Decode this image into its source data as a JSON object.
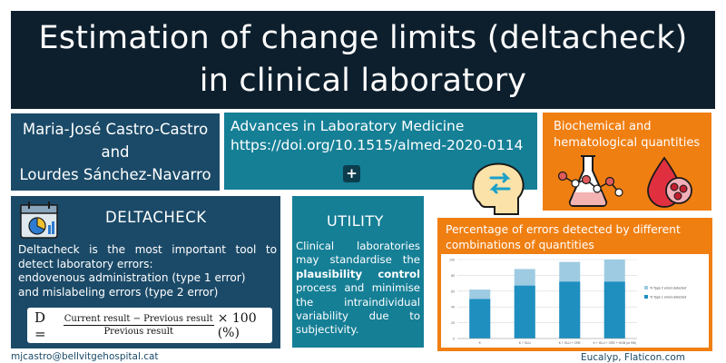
{
  "title": {
    "line1": "Estimation of change limits (deltacheck)",
    "line2": "in clinical laboratory"
  },
  "authors": {
    "line1": "Maria-José Castro-Castro",
    "line2": "and",
    "line3": "Lourdes Sánchez-Navarro"
  },
  "journal": {
    "name": "Advances in Laboratory Medicine",
    "doi": "https://doi.org/10.1515/almed-2020-0114",
    "plus_label": "+"
  },
  "quantities": {
    "line1": "Biochemical and",
    "line2": "hematological quantities"
  },
  "deltacheck": {
    "heading": "DELTACHECK",
    "para1": "Deltacheck is the most important tool to detect laboratory errors:",
    "line2": "endovenous administration (type 1 error)",
    "line3": "and mislabeling errors (type 2 error)",
    "formula": {
      "lhs": "D =",
      "numerator": "Current result − Previous result",
      "denominator": "Previous result",
      "rhs": "× 100 (%)"
    }
  },
  "utility": {
    "heading": "UTILITY",
    "text_before": "Clinical laboratories may standardise the ",
    "text_bold": "plausibility control",
    "text_after": " process and minimise the intraindividual variability due to subjectivity."
  },
  "chart_panel": {
    "heading_line1": "Percentage of errors detected by different",
    "heading_line2": "combinations of quantities"
  },
  "chart_data": {
    "type": "bar",
    "categories": [
      "K",
      "K + GLU",
      "K + GLU + CRE",
      "K + GLU + CRE + HGB (or HB)"
    ],
    "series": [
      {
        "name": "% Type 2 errors detected",
        "values": [
          62,
          88,
          97,
          100
        ]
      },
      {
        "name": "% Type 1 errors detected",
        "values": [
          50,
          67,
          72,
          72
        ]
      }
    ],
    "ylim": [
      0,
      100
    ],
    "yticks": [
      0,
      20,
      40,
      60,
      80,
      100
    ],
    "grid": true,
    "legend": "right",
    "colors": {
      "type2": "#9ecbe2",
      "type1": "#1f8fc0"
    }
  },
  "footer": {
    "email": "mjcastro@bellvitgehospital.cat",
    "credit": "Eucalyp, Flaticon.com"
  },
  "icons": [
    "calendar-chart-icon",
    "brain-arrows-icon",
    "lab-flask-molecule-icon",
    "blood-drop-cells-icon"
  ],
  "colors": {
    "dark_navy": "#0d1f2d",
    "navy": "#1b4a68",
    "teal": "#157f96",
    "orange": "#f07f12"
  }
}
